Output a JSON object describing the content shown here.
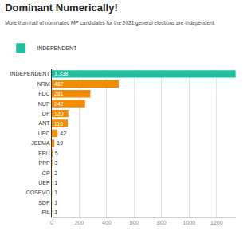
{
  "chart_data": {
    "type": "bar",
    "title": "Dominant Numerically!",
    "subtitle": "More than half of nominated MP candidates for the 2021 general elections are Independent.",
    "orientation": "horizontal",
    "categories": [
      "INDEPENDENT",
      "NRM",
      "FDC",
      "NUP",
      "DP",
      "ANT",
      "UPC",
      "JEEMA",
      "EPU",
      "PPP",
      "CP",
      "UEP",
      "COSEVO",
      "SDP",
      "FIL"
    ],
    "series": [
      {
        "name": "INDEPENDENT",
        "values": [
          1338,
          487,
          281,
          242,
          120,
          116,
          42,
          19,
          5,
          3,
          2,
          1,
          1,
          1,
          1
        ],
        "value_labels": [
          "1,338",
          "487",
          "281",
          "242",
          "120",
          "116",
          "42",
          "19",
          "5",
          "3",
          "2",
          "1",
          "1",
          "1",
          "1"
        ],
        "colors": [
          "#1fbf9f",
          "#f28c00",
          "#f28c00",
          "#f28c00",
          "#f28c00",
          "#f28c00",
          "#f28c00",
          "#f28c00",
          "#f28c00",
          "#f28c00",
          "#f28c00",
          "#f28c00",
          "#f28c00",
          "#f28c00",
          "#f28c00"
        ]
      }
    ],
    "xlim": [
      0,
      1340
    ],
    "xticks": [
      0,
      200,
      400,
      600,
      800,
      1000,
      1200
    ],
    "grid": true,
    "legend": "top-left",
    "data_labels": true
  }
}
